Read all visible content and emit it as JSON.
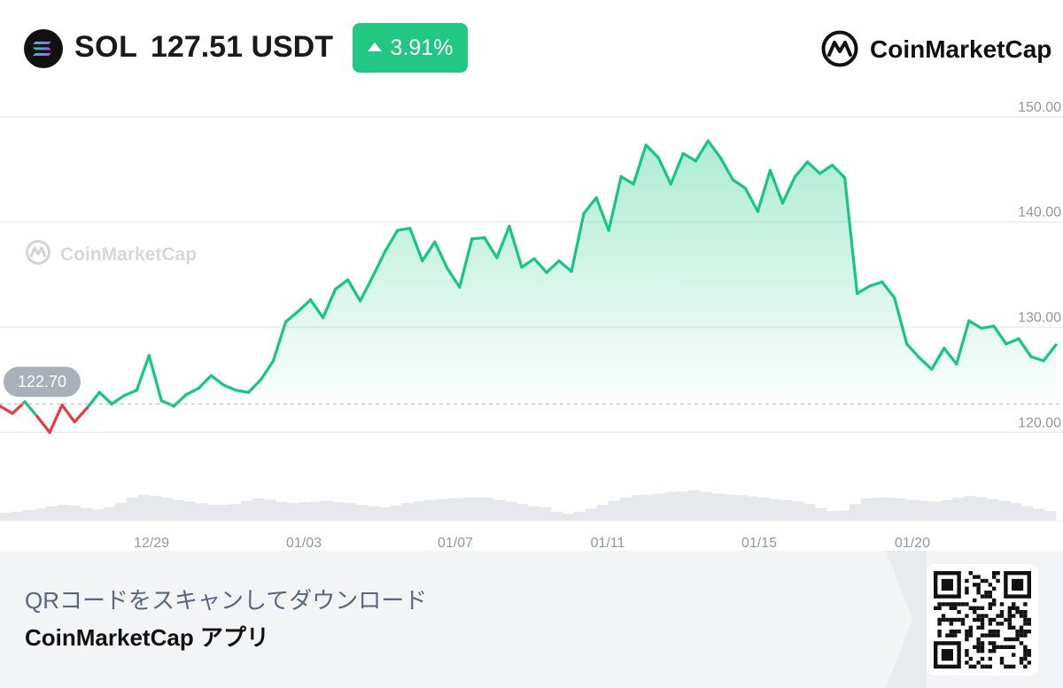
{
  "header": {
    "symbol": "SOL",
    "price": "127.51 USDT",
    "change": "3.91%",
    "brand": "CoinMarketCap"
  },
  "watermark": "CoinMarketCap",
  "footer": {
    "line1": "QRコードをスキャンしてダウンロード",
    "line2": "CoinMarketCap アプリ"
  },
  "colors": {
    "up": "#16c784",
    "down": "#ea3943",
    "badge": "#22c784",
    "grid": "#e9ebee",
    "axis_text": "#8f97a4",
    "volume": "#e6e8ec"
  },
  "chart_data": {
    "type": "line",
    "ylim": [
      117.5,
      151.5
    ],
    "yticks": [
      120,
      130,
      140,
      150
    ],
    "ytick_labels": [
      "120.00",
      "130.00",
      "140.00",
      "150.00"
    ],
    "xticks": [
      "12/29",
      "01/03",
      "01/07",
      "01/11",
      "01/15",
      "01/20"
    ],
    "reference_label": "122.70",
    "reference_value": 122.7,
    "series": [
      {
        "x": [
          "12/25",
          "12/25",
          "12/25",
          "12/26",
          "12/26",
          "12/26",
          "12/27",
          "12/27",
          "12/27",
          "12/28",
          "12/28",
          "12/28",
          "12/29",
          "12/29",
          "12/29",
          "12/30",
          "12/30",
          "12/30",
          "12/31",
          "12/31",
          "12/31",
          "01/01",
          "01/01",
          "01/01",
          "01/02",
          "01/02",
          "01/02",
          "01/03",
          "01/03",
          "01/03",
          "01/04",
          "01/04",
          "01/04",
          "01/05",
          "01/05",
          "01/05",
          "01/06",
          "01/06",
          "01/06",
          "01/07",
          "01/07",
          "01/07",
          "01/08",
          "01/08",
          "01/08",
          "01/09",
          "01/09",
          "01/09",
          "01/10",
          "01/10",
          "01/10",
          "01/11",
          "01/11",
          "01/11",
          "01/12",
          "01/12",
          "01/12",
          "01/13",
          "01/13",
          "01/13",
          "01/14",
          "01/14",
          "01/14",
          "01/15",
          "01/15",
          "01/15",
          "01/16",
          "01/16",
          "01/16",
          "01/17",
          "01/17",
          "01/17",
          "01/18",
          "01/18",
          "01/18",
          "01/19",
          "01/19",
          "01/19",
          "01/20",
          "01/20",
          "01/20",
          "01/21",
          "01/21",
          "01/21",
          "01/22",
          "01/22"
        ],
        "values": [
          122.5,
          121.8,
          122.9,
          121.5,
          120.0,
          122.6,
          121.0,
          122.3,
          123.8,
          122.7,
          123.5,
          124.0,
          127.3,
          123.0,
          122.5,
          123.6,
          124.2,
          125.4,
          124.5,
          124.0,
          123.8,
          125.0,
          126.8,
          130.5,
          131.5,
          132.6,
          130.9,
          133.6,
          134.5,
          132.5,
          134.8,
          137.2,
          139.2,
          139.4,
          136.3,
          138.1,
          135.6,
          133.8,
          138.4,
          138.5,
          136.6,
          139.6,
          135.7,
          136.5,
          135.2,
          136.3,
          135.3,
          140.8,
          142.3,
          139.2,
          144.3,
          143.6,
          147.3,
          146.1,
          143.6,
          146.5,
          145.8,
          147.7,
          146.1,
          144.0,
          143.2,
          141.0,
          144.9,
          141.8,
          144.3,
          145.7,
          144.6,
          145.4,
          144.2,
          133.2,
          133.9,
          134.3,
          132.8,
          128.4,
          127.1,
          126.0,
          128.0,
          126.5,
          130.6,
          129.9,
          130.1,
          128.4,
          128.9,
          127.2,
          126.8,
          128.3
        ]
      }
    ],
    "volume_fraction": [
      0.25,
      0.28,
      0.33,
      0.38,
      0.45,
      0.5,
      0.48,
      0.4,
      0.35,
      0.42,
      0.55,
      0.72,
      0.82,
      0.78,
      0.72,
      0.65,
      0.6,
      0.55,
      0.5,
      0.5,
      0.52,
      0.62,
      0.7,
      0.66,
      0.6,
      0.55,
      0.58,
      0.6,
      0.62,
      0.58,
      0.55,
      0.5,
      0.46,
      0.42,
      0.48,
      0.55,
      0.6,
      0.65,
      0.68,
      0.7,
      0.72,
      0.72,
      0.72,
      0.65,
      0.6,
      0.52,
      0.45,
      0.42,
      0.28,
      0.22,
      0.28,
      0.38,
      0.5,
      0.62,
      0.72,
      0.8,
      0.82,
      0.85,
      0.9,
      0.92,
      0.95,
      0.9,
      0.85,
      0.82,
      0.8,
      0.76,
      0.72,
      0.68,
      0.64,
      0.6,
      0.52,
      0.4,
      0.3,
      0.32,
      0.52,
      0.7,
      0.72,
      0.72,
      0.7,
      0.65,
      0.62,
      0.6,
      0.64,
      0.72,
      0.78,
      0.74,
      0.68,
      0.62,
      0.55,
      0.45,
      0.38,
      0.3
    ]
  }
}
